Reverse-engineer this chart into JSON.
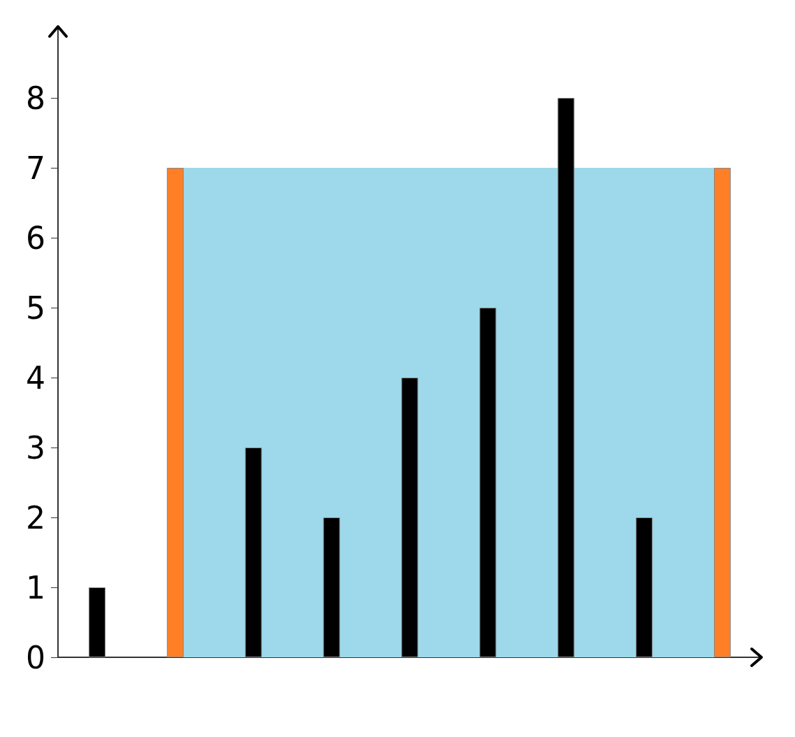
{
  "chart_data": {
    "type": "bar",
    "categories": [
      null,
      null,
      null,
      null,
      null,
      null,
      null,
      null,
      null
    ],
    "series": [
      {
        "type": "area",
        "color": "#9dd9ea",
        "values": [
          null,
          7,
          7,
          7,
          7,
          7,
          null,
          7,
          7
        ]
      },
      {
        "colors": [
          "#000000",
          "#ff7f27",
          "#000000",
          "#000000",
          "#000000",
          "#000000",
          "#000000",
          "#000000",
          "#ff7f27"
        ],
        "values": [
          1,
          7,
          3,
          2,
          4,
          5,
          8,
          2,
          7
        ]
      }
    ],
    "ylim": [
      0,
      9
    ],
    "yticks": [
      0,
      1,
      2,
      3,
      4,
      5,
      6,
      7,
      8
    ]
  }
}
